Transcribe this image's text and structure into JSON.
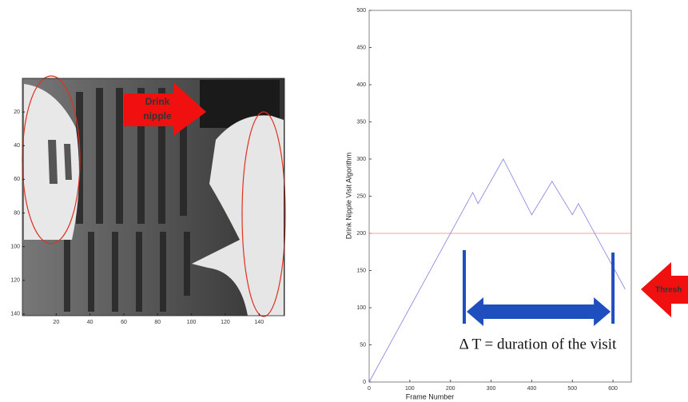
{
  "chart_data": {
    "type": "line",
    "xlabel": "Frame Number",
    "ylabel": "Drink Nipple Visit Algorithm",
    "series": [
      {
        "color": "#8080e0",
        "x": [
          0,
          255,
          268,
          330,
          400,
          450,
          500,
          515,
          630
        ],
        "values": [
          0,
          255,
          240,
          300,
          225,
          270,
          225,
          240,
          125
        ]
      }
    ],
    "threshold": 200,
    "threshold_color": "#f08080",
    "xlim": [
      0,
      645
    ],
    "ylim": [
      0,
      500
    ],
    "xticks": [
      0,
      100,
      200,
      300,
      400,
      500,
      600
    ],
    "yticks": [
      0,
      50,
      100,
      150,
      200,
      250,
      300,
      350,
      400,
      450,
      500
    ],
    "visit_start": 234,
    "visit_end": 600,
    "visit_color": "#1f4fbf",
    "visit_label": "Δ T = duration of the visit",
    "threshold_label": "Thresh"
  },
  "image": {
    "xlim": [
      0,
      155
    ],
    "ylim": [
      0,
      141
    ],
    "xticks": [
      20,
      40,
      60,
      80,
      100,
      120,
      140
    ],
    "yticks": [
      20,
      40,
      60,
      80,
      100,
      120,
      140
    ],
    "arrow_label": [
      "Drink",
      "nipple"
    ]
  }
}
